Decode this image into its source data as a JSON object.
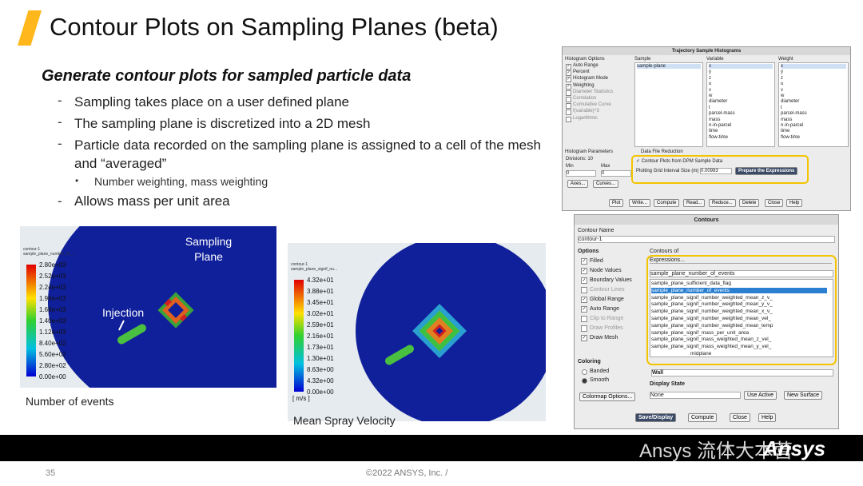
{
  "header": {
    "title": "Contour Plots on Sampling Planes (beta)"
  },
  "body": {
    "subtitle": "Generate contour plots for sampled particle data",
    "bullets": [
      "Sampling takes place on a user defined plane",
      "The sampling plane is discretized into a 2D mesh",
      "Particle data recorded on the sampling plane is assigned to a cell of the mesh and “averaged”"
    ],
    "sub_bullet": "Number weighting, mass weighting",
    "last_bullet": "Allows mass per unit area"
  },
  "left_image": {
    "legend_title": [
      "contour-1",
      "sample_plane_number_of_..."
    ],
    "legend": [
      "2.80e+03",
      "2.52e+03",
      "2.24e+03",
      "1.96e+03",
      "1.68e+03",
      "1.40e+03",
      "1.12e+03",
      "8.40e+02",
      "5.60e+02",
      "2.80e+02",
      "0.00e+00"
    ],
    "sampling_label": "Sampling Plane",
    "injection_label": "Injection",
    "caption": "Number of events"
  },
  "right_image": {
    "legend_title": [
      "contour-1",
      "sample_plane_signif_nu..."
    ],
    "legend": [
      "4.32e+01",
      "3.88e+01",
      "3.45e+01",
      "3.02e+01",
      "2.59e+01",
      "2.16e+01",
      "1.73e+01",
      "1.30e+01",
      "8.63e+00",
      "4.32e+00",
      "0.00e+00"
    ],
    "unit": "[ m/s ]",
    "caption": "Mean Spray Velocity"
  },
  "histogram_dialog": {
    "title": "Trajectory Sample Histograms",
    "options_header": "Histogram Options",
    "options": [
      {
        "label": "Auto Range",
        "checked": true
      },
      {
        "label": "Percent",
        "checked": true
      },
      {
        "label": "Histogram Mode",
        "checked": true
      },
      {
        "label": "Weighting",
        "checked": true
      },
      {
        "label": "Diameter Statistics",
        "checked": false
      },
      {
        "label": "Correlation",
        "checked": false
      },
      {
        "label": "Cumulative Curve",
        "checked": false
      },
      {
        "label": "f(variable)^3",
        "checked": false
      },
      {
        "label": "Logarithmic",
        "checked": false
      }
    ],
    "sample_header": "Sample",
    "samples": [
      "sample-plane"
    ],
    "variable_header": "Variable",
    "variables": [
      "x",
      "y",
      "z",
      "u",
      "v",
      "w",
      "diameter",
      "t",
      "parcel-mass",
      "mass",
      "n-in-parcel",
      "time",
      "flow-time"
    ],
    "weight_header": "Weight",
    "weights": [
      "x",
      "y",
      "z",
      "u",
      "v",
      "w",
      "diameter",
      "t",
      "parcel-mass",
      "mass",
      "n-in-parcel",
      "time",
      "flow-time"
    ],
    "params_header": "Histogram Parameters",
    "divisions": "Divisions: 10",
    "min_label": "Min",
    "max_label": "Max",
    "min_value": "0",
    "max_value": "0",
    "reduction_header": "Data File Reduction",
    "reduction_check": "Contour Plots from DPM Sample Data",
    "grid_label": "Plotting Grid Interval Size (m)",
    "grid_value": "0.00983",
    "prepare_button": "Prepare the Expressions",
    "side_buttons": [
      "Axes...",
      "Curves..."
    ],
    "buttons": [
      "Plot",
      "Write...",
      "Compute",
      "Read...",
      "Reduce...",
      "Delete",
      "Close",
      "Help"
    ]
  },
  "contours_dialog": {
    "title": "Contours",
    "name_label": "Contour Name",
    "name_value": "contour-1",
    "options_header": "Options",
    "options": [
      {
        "label": "Filled",
        "checked": true
      },
      {
        "label": "Node Values",
        "checked": true
      },
      {
        "label": "Boundary Values",
        "checked": true
      },
      {
        "label": "Contour Lines",
        "checked": false
      },
      {
        "label": "Global Range",
        "checked": true
      },
      {
        "label": "Auto Range",
        "checked": true
      },
      {
        "label": "Clip to Range",
        "checked": false
      },
      {
        "label": "Draw Profiles",
        "checked": false
      },
      {
        "label": "Draw Mesh",
        "checked": true
      }
    ],
    "contours_of": "Contours of",
    "category": "Expressions...",
    "selected": "sample_plane_number_of_events",
    "list": [
      "sample_plane_sufficient_data_flag",
      "sample_plane_number_of_events",
      "sample_plane_signif_number_weighted_mean_z_v_",
      "sample_plane_signif_number_weighted_mean_y_v_",
      "sample_plane_signif_number_weighted_mean_x_v_",
      "sample_plane_signif_number_weighted_mean_vel_",
      "sample_plane_signif_number_weighted_mean_temp",
      "sample_plane_signif_mass_per_unit_area",
      "sample_plane_signif_mass_weighted_mean_z_vel_",
      "sample_plane_signif_mass_weighted_mean_y_vel_",
      "midplane"
    ],
    "coloring_header": "Coloring",
    "coloring": [
      "Banded",
      "Smooth"
    ],
    "wall": "Wall",
    "display_state": "Display State",
    "display_value": "None",
    "use_active": "Use Active",
    "new_surface": "New Surface",
    "colormap_button": "Colormap Options...",
    "buttons": [
      "Save/Display",
      "Compute",
      "Close",
      "Help"
    ]
  },
  "footer": {
    "page": "35",
    "copyright": "©2022 ANSYS, Inc. /",
    "logo": "Ansys",
    "watermark": "Ansys 流体大本营"
  }
}
